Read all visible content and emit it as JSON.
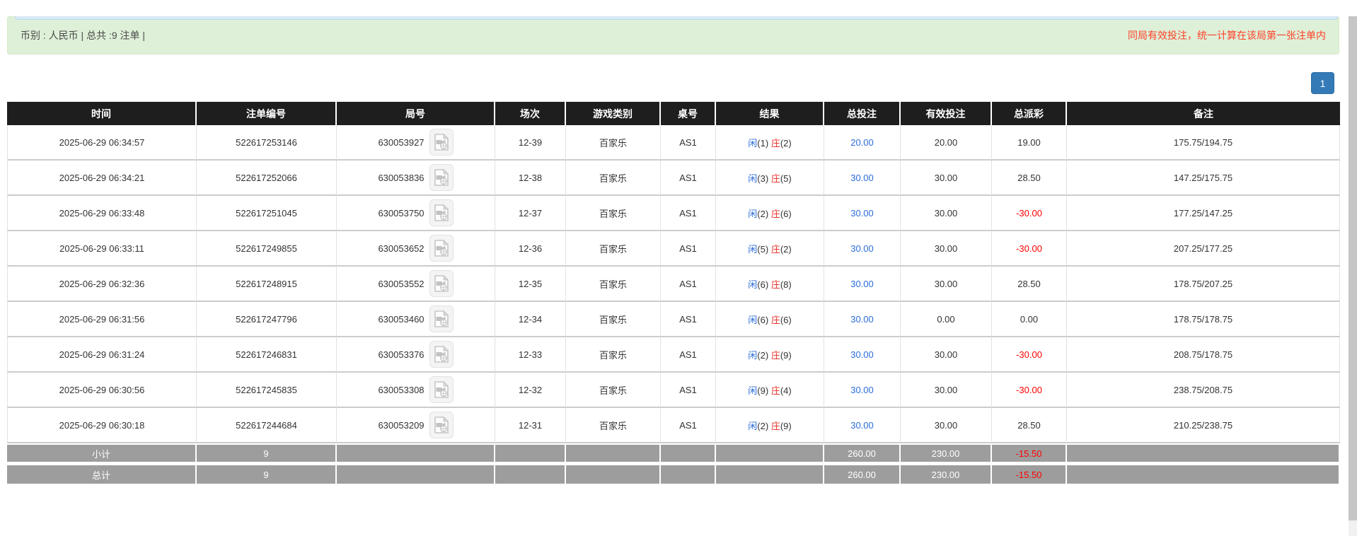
{
  "alert_bar": {
    "summary": "币别 : 人民币 | 总共 :9 注单 |",
    "note": "同局有效投注，统一计算在该局第一张注单内"
  },
  "pagination": {
    "page": "1"
  },
  "table": {
    "headers": [
      "时间",
      "注单编号",
      "局号",
      "场次",
      "游戏类别",
      "桌号",
      "结果",
      "总投注",
      "有效投注",
      "总派彩",
      "备注"
    ],
    "rows": [
      {
        "time": "2025-06-29 06:34:57",
        "bet_id": "522617253146",
        "round_id": "630053927",
        "session": "12-39",
        "game_type": "百家乐",
        "table_no": "AS1",
        "player_label": "闲",
        "player_value": "(1)",
        "banker_label": "庄",
        "banker_value": "(2)",
        "total_bet": "20.00",
        "valid_bet": "20.00",
        "payout": "19.00",
        "remark": "175.75/194.75"
      },
      {
        "time": "2025-06-29 06:34:21",
        "bet_id": "522617252066",
        "round_id": "630053836",
        "session": "12-38",
        "game_type": "百家乐",
        "table_no": "AS1",
        "player_label": "闲",
        "player_value": "(3)",
        "banker_label": "庄",
        "banker_value": "(5)",
        "total_bet": "30.00",
        "valid_bet": "30.00",
        "payout": "28.50",
        "remark": "147.25/175.75"
      },
      {
        "time": "2025-06-29 06:33:48",
        "bet_id": "522617251045",
        "round_id": "630053750",
        "session": "12-37",
        "game_type": "百家乐",
        "table_no": "AS1",
        "player_label": "闲",
        "player_value": "(2)",
        "banker_label": "庄",
        "banker_value": "(6)",
        "total_bet": "30.00",
        "valid_bet": "30.00",
        "payout": "-30.00",
        "remark": "177.25/147.25"
      },
      {
        "time": "2025-06-29 06:33:11",
        "bet_id": "522617249855",
        "round_id": "630053652",
        "session": "12-36",
        "game_type": "百家乐",
        "table_no": "AS1",
        "player_label": "闲",
        "player_value": "(5)",
        "banker_label": "庄",
        "banker_value": "(2)",
        "total_bet": "30.00",
        "valid_bet": "30.00",
        "payout": "-30.00",
        "remark": "207.25/177.25"
      },
      {
        "time": "2025-06-29 06:32:36",
        "bet_id": "522617248915",
        "round_id": "630053552",
        "session": "12-35",
        "game_type": "百家乐",
        "table_no": "AS1",
        "player_label": "闲",
        "player_value": "(6)",
        "banker_label": "庄",
        "banker_value": "(8)",
        "total_bet": "30.00",
        "valid_bet": "30.00",
        "payout": "28.50",
        "remark": "178.75/207.25"
      },
      {
        "time": "2025-06-29 06:31:56",
        "bet_id": "522617247796",
        "round_id": "630053460",
        "session": "12-34",
        "game_type": "百家乐",
        "table_no": "AS1",
        "player_label": "闲",
        "player_value": "(6)",
        "banker_label": "庄",
        "banker_value": "(6)",
        "total_bet": "30.00",
        "valid_bet": "0.00",
        "payout": "0.00",
        "remark": "178.75/178.75"
      },
      {
        "time": "2025-06-29 06:31:24",
        "bet_id": "522617246831",
        "round_id": "630053376",
        "session": "12-33",
        "game_type": "百家乐",
        "table_no": "AS1",
        "player_label": "闲",
        "player_value": "(2)",
        "banker_label": "庄",
        "banker_value": "(9)",
        "total_bet": "30.00",
        "valid_bet": "30.00",
        "payout": "-30.00",
        "remark": "208.75/178.75"
      },
      {
        "time": "2025-06-29 06:30:56",
        "bet_id": "522617245835",
        "round_id": "630053308",
        "session": "12-32",
        "game_type": "百家乐",
        "table_no": "AS1",
        "player_label": "闲",
        "player_value": "(9)",
        "banker_label": "庄",
        "banker_value": "(4)",
        "total_bet": "30.00",
        "valid_bet": "30.00",
        "payout": "-30.00",
        "remark": "238.75/208.75"
      },
      {
        "time": "2025-06-29 06:30:18",
        "bet_id": "522617244684",
        "round_id": "630053209",
        "session": "12-31",
        "game_type": "百家乐",
        "table_no": "AS1",
        "player_label": "闲",
        "player_value": "(2)",
        "banker_label": "庄",
        "banker_value": "(9)",
        "total_bet": "30.00",
        "valid_bet": "30.00",
        "payout": "28.50",
        "remark": "210.25/238.75"
      }
    ],
    "summary_rows": [
      {
        "label": "小计",
        "count": "9",
        "total_bet": "260.00",
        "valid_bet": "230.00",
        "payout": "-15.50",
        "remark": ""
      },
      {
        "label": "总计",
        "count": "9",
        "total_bet": "260.00",
        "valid_bet": "230.00",
        "payout": "-15.50",
        "remark": ""
      }
    ]
  },
  "icons": {
    "round_replay": "video-file-icon"
  },
  "colors": {
    "accent_blue": "#2b6cd9",
    "banker_red": "#e8352b",
    "negative_red": "#ff0000",
    "note_red": "#fd3f28",
    "header_bg": "#1e1e1e",
    "summary_bg": "#9d9d9d",
    "alert_bg": "#dff0d8",
    "page_button_blue": "#337ab7"
  }
}
